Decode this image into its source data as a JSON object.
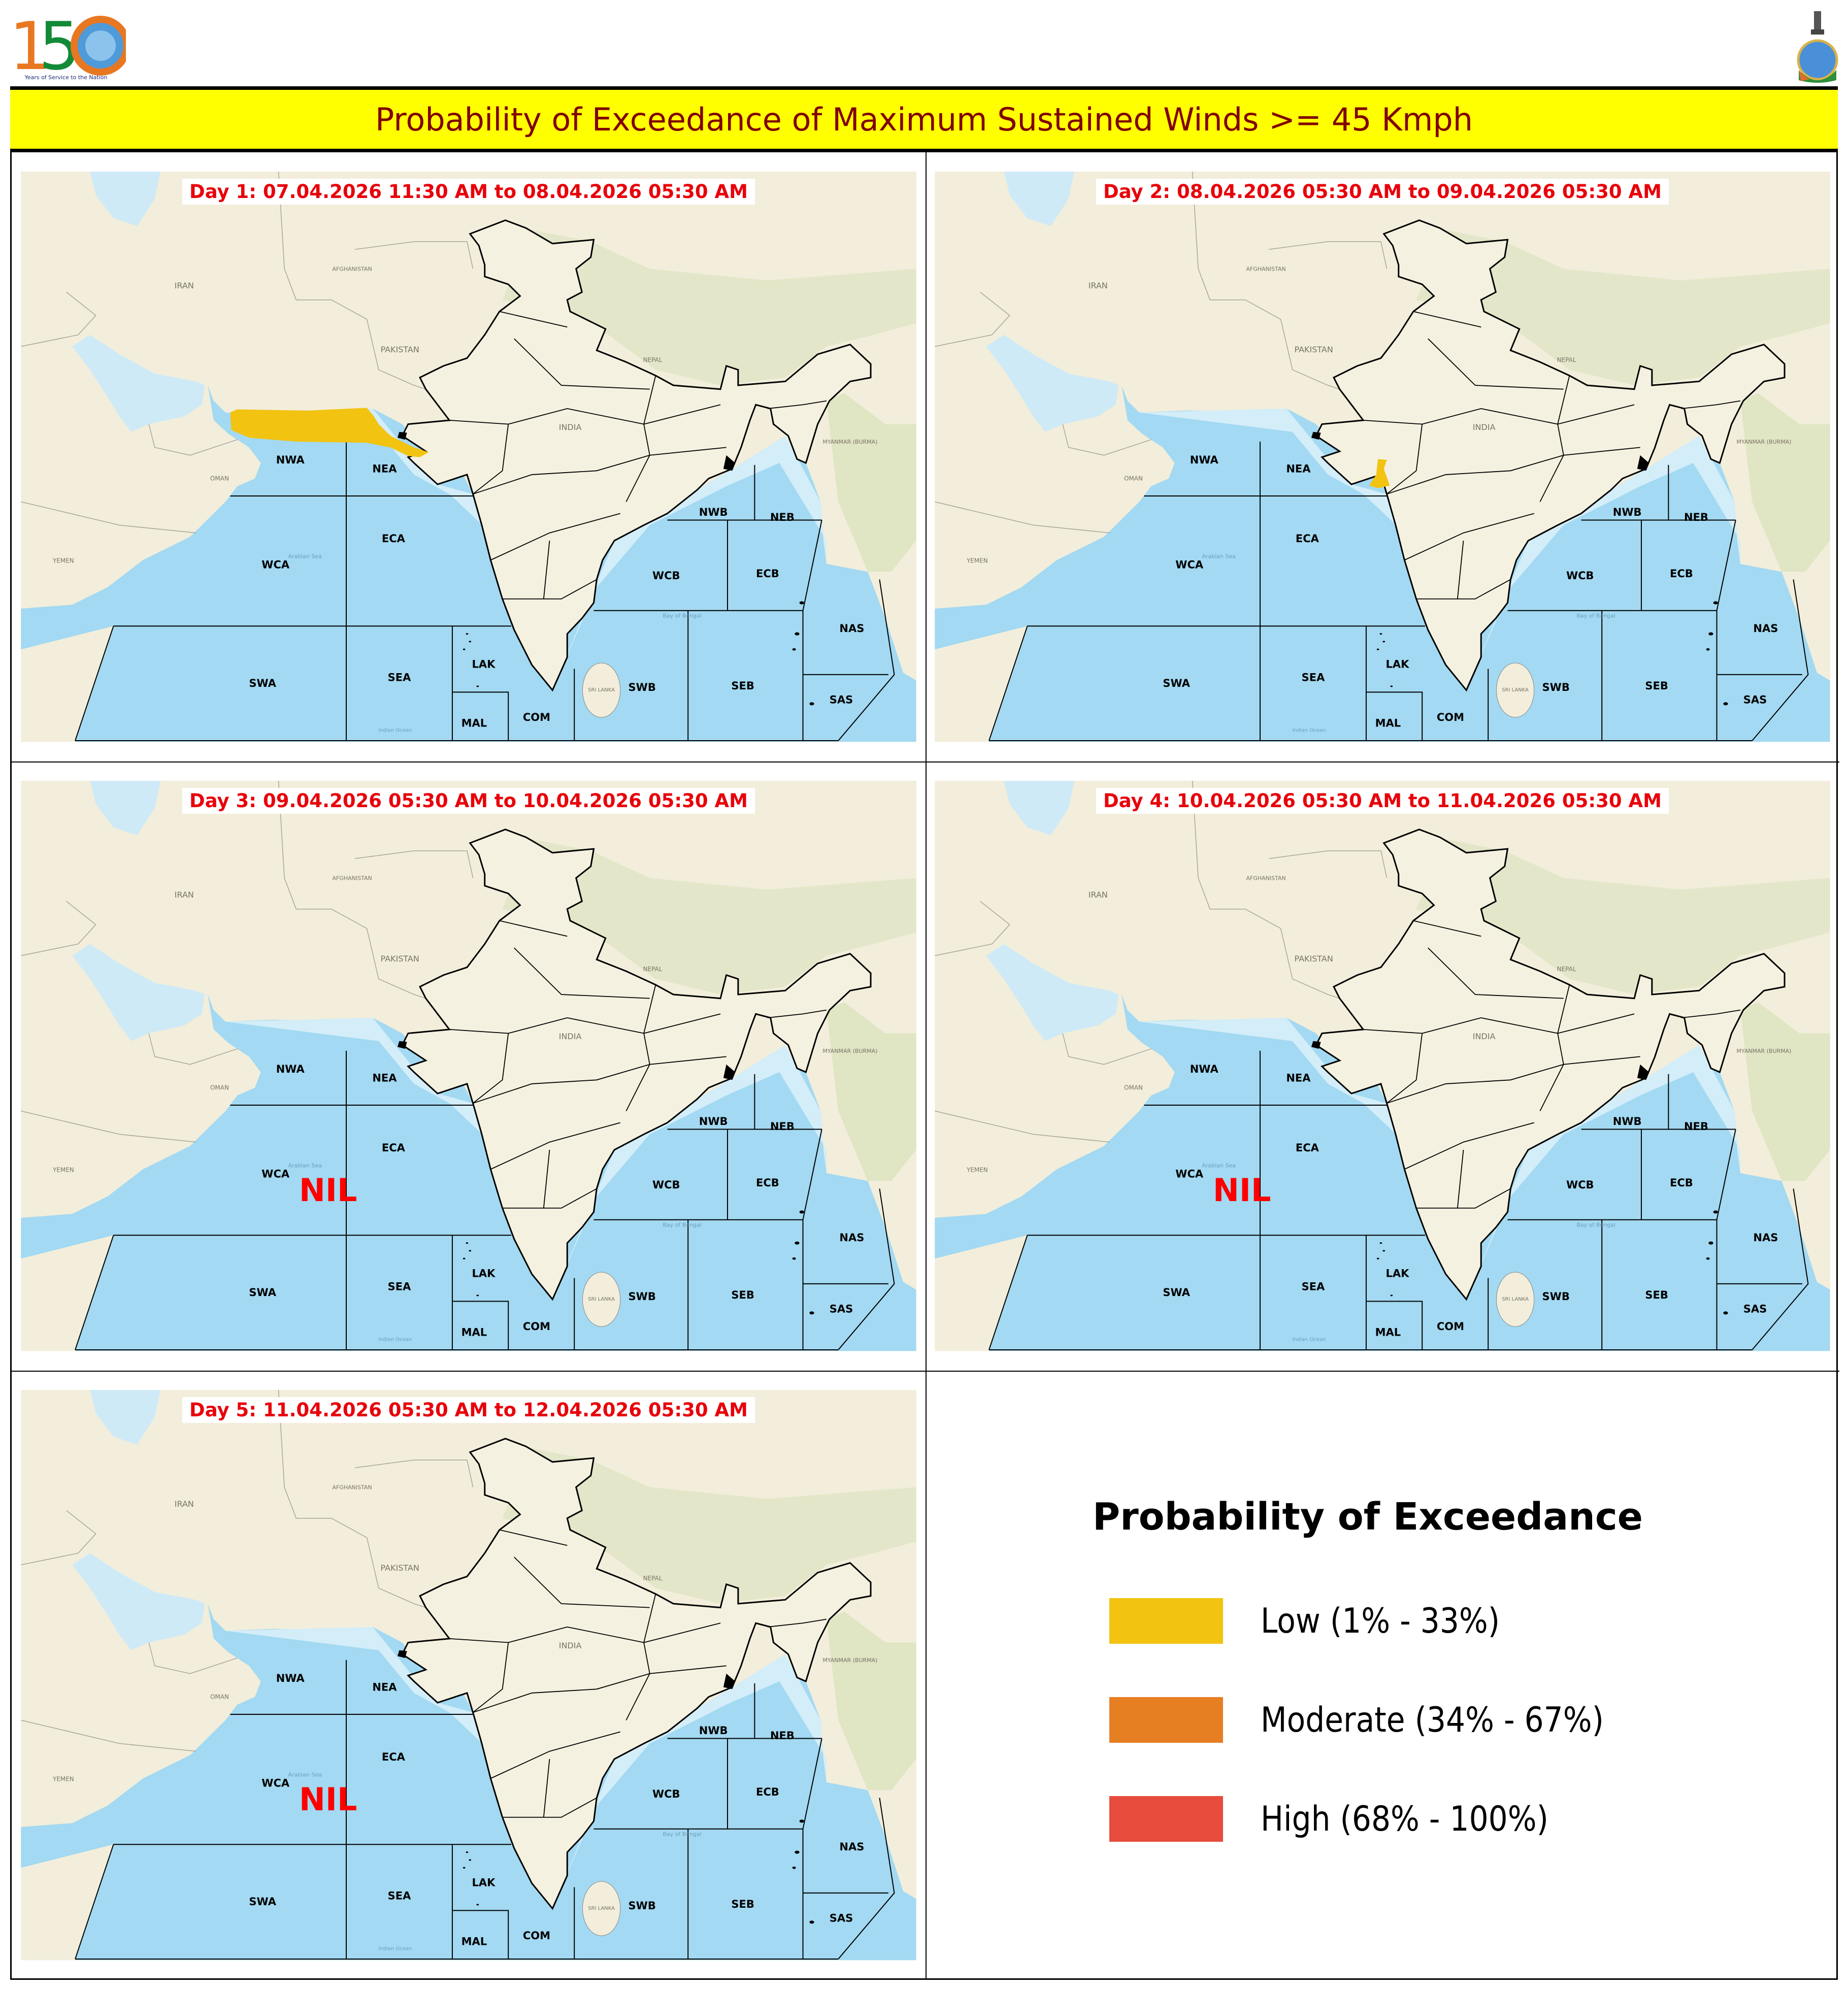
{
  "header": {
    "logo_left": {
      "text": "150",
      "caption": "Years of Service to the Nation"
    },
    "logo_right": {
      "name": "national-emblem-logo"
    },
    "title": "Probability of Exceedance of Maximum Sustained Winds >= 45 Kmph"
  },
  "map_labels": {
    "regions": [
      "NWA",
      "NEA",
      "ECA",
      "WCA",
      "NWB",
      "NEB",
      "WCB",
      "ECB",
      "NAS",
      "SAS",
      "SWA",
      "SEA",
      "LAK",
      "MAL",
      "COM",
      "SWB",
      "SEB"
    ],
    "countries": [
      "IRAN",
      "AFGHANISTAN",
      "PAKISTAN",
      "INDIA",
      "NEPAL",
      "OMAN",
      "YEMEN",
      "MYANMAR (BURMA)",
      "SRI LANKA",
      "Arabian Sea",
      "Bay of Bengal",
      "Indian Ocean"
    ]
  },
  "panels": [
    {
      "title": "Day 1: 07.04.2026 11:30 AM to 08.04.2026 05:30 AM",
      "nil": "",
      "areas": [
        {
          "level": "Low",
          "region": "North Arabian Sea off Pakistan/Gujarat coast"
        }
      ]
    },
    {
      "title": "Day 2: 08.04.2026 05:30 AM to 09.04.2026 05:30 AM",
      "nil": "",
      "areas": [
        {
          "level": "Low",
          "region": "Gulf of Khambhat"
        }
      ]
    },
    {
      "title": "Day 3: 09.04.2026 05:30 AM to 10.04.2026 05:30 AM",
      "nil": "NIL",
      "areas": []
    },
    {
      "title": "Day 4: 10.04.2026 05:30 AM to 11.04.2026 05:30 AM",
      "nil": "NIL",
      "areas": []
    },
    {
      "title": "Day 5: 11.04.2026 05:30 AM to 12.04.2026 05:30 AM",
      "nil": "NIL",
      "areas": []
    }
  ],
  "legend": {
    "title": "Probability of Exceedance",
    "items": [
      {
        "label": "Low (1% - 33%)",
        "color": "#f2c311"
      },
      {
        "label": "Moderate (34% - 67%)",
        "color": "#e67e22"
      },
      {
        "label": "High (68% - 100%)",
        "color": "#e74c3c"
      }
    ]
  },
  "colors": {
    "title_bar": "#ffff00",
    "title_text": "#800000",
    "day_title": "#e8000b",
    "land": "#f2eedb",
    "sea": "#a3d9f2",
    "nil": "#ff0000"
  }
}
